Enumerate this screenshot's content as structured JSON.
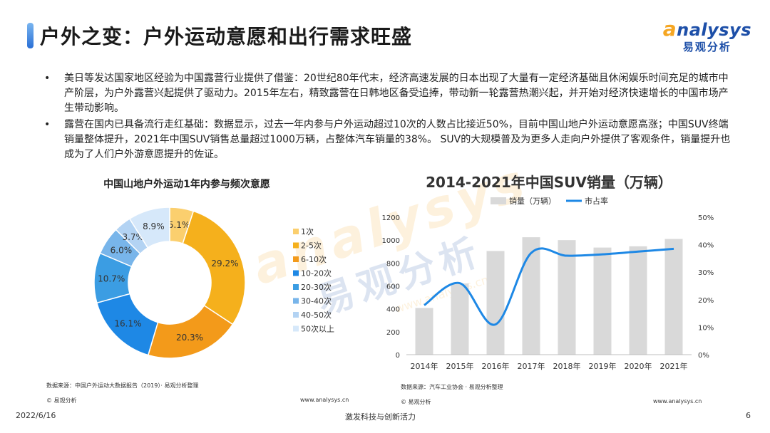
{
  "page": {
    "title": "户外之变：户外运动意愿和出行需求旺盛",
    "logo_en_first": "a",
    "logo_en_rest": "nalysys",
    "logo_cn": "易观分析",
    "watermark_en": "analysys",
    "watermark_cn": "易观分析",
    "watermark_url": "www.analysys.cn"
  },
  "bullets": [
    {
      "dot": "•",
      "text": "美日等发达国家地区经验为中国露营行业提供了借鉴：20世纪80年代末，经济高速发展的日本出现了大量有一定经济基础且休闲娱乐时间充足的城市中产阶层，为户外露营兴起提供了驱动力。2015年左右，精致露营在日韩地区备受追捧，带动新一轮露营热潮兴起，并开始对经济快速增长的中国市场产生带动影响。"
    },
    {
      "dot": "•",
      "text": "露营在国内已具备流行走红基础：数据显示，过去一年内参与户外运动超过10次的人数占比接近50%，目前中国山地户外运动意愿高涨；中国SUV终端销量整体提升，2021年中国SUV销售总量超过1000万辆，占整体汽车销量的38%。 SUV的大规模普及为更多人走向户外提供了客观条件，销量提升也成为了人们户外游意愿提升的佐证。"
    }
  ],
  "sources": {
    "left": "数据来源：中国户外运动大数据报告（2019）· 易观分析整理",
    "right": "数据来源：汽车工业协会 · 易观分析整理",
    "copyright": "© 易观分析",
    "url": "www.analysys.cn"
  },
  "footer": {
    "date": "2022/6/16",
    "slogan": "激发科技与创新活力",
    "page_number": "6"
  },
  "chart_data": [
    {
      "type": "pie",
      "title": "中国山地户外运动1年内参与频次意愿",
      "categories": [
        "1次",
        "2-5次",
        "6-10次",
        "10-20次",
        "20-30次",
        "30-40次",
        "40-50次",
        "50次以上"
      ],
      "values": [
        5.1,
        29.2,
        20.3,
        16.1,
        10.7,
        6.0,
        3.7,
        8.9
      ],
      "value_labels": [
        "5.1%",
        "29.2%",
        "20.3%",
        "16.1%",
        "10.7%",
        "6.0%",
        "3.7%",
        "8.9%"
      ],
      "colors": [
        "#fbcf6e",
        "#f5b01c",
        "#f39a1a",
        "#1e88e5",
        "#3b9de3",
        "#78b5ea",
        "#b3d3f3",
        "#d6e8fa"
      ],
      "donut": true,
      "legend": "right"
    },
    {
      "type": "bar",
      "title": "2014-2021年中国SUV销量（万辆）",
      "categories": [
        "2014年",
        "2015年",
        "2016年",
        "2017年",
        "2018年",
        "2019年",
        "2020年",
        "2021年"
      ],
      "series": [
        {
          "name": "销量（万辆）",
          "type": "bar",
          "axis": "left",
          "values": [
            408,
            622,
            905,
            1025,
            1000,
            935,
            946,
            1010
          ],
          "color": "#d9d9d9"
        },
        {
          "name": "市占率",
          "type": "line",
          "axis": "right",
          "values": [
            0.18,
            0.26,
            0.11,
            0.37,
            0.36,
            0.365,
            0.375,
            0.385
          ],
          "color": "#1e88e5"
        }
      ],
      "ylim": [
        0,
        1200
      ],
      "yticks": [
        "0",
        "200",
        "400",
        "600",
        "800",
        "1000",
        "1200"
      ],
      "y2lim": [
        0,
        0.5
      ],
      "y2ticks": [
        "0%",
        "10%",
        "20%",
        "30%",
        "40%",
        "50%"
      ],
      "grid": false,
      "legend": "top"
    }
  ]
}
